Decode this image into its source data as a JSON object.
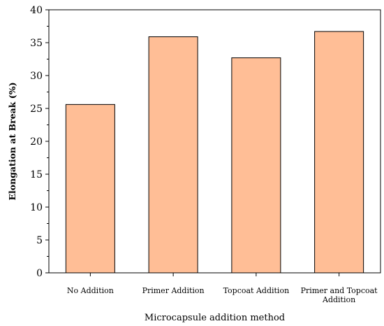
{
  "chart_data": {
    "type": "bar",
    "categories": [
      "No Addition",
      "Primer Addition",
      "Topcoat Addition",
      "Primer and Topcoat Addition"
    ],
    "category_lines": [
      [
        "No Addition"
      ],
      [
        "Primer Addition"
      ],
      [
        "Topcoat Addition"
      ],
      [
        "Primer and Topcoat",
        "Addition"
      ]
    ],
    "values": [
      25.6,
      35.9,
      32.7,
      36.7
    ],
    "xlabel": "Microcapsule addition method",
    "ylabel": "Elongation at Break (%)",
    "ylim": [
      0,
      40
    ],
    "yticks": [
      0,
      5,
      10,
      15,
      20,
      25,
      30,
      35,
      40
    ],
    "grid": false,
    "colors": {
      "bar_fill": "#FFBE96",
      "bar_stroke": "#000000",
      "axis": "#000000"
    }
  }
}
